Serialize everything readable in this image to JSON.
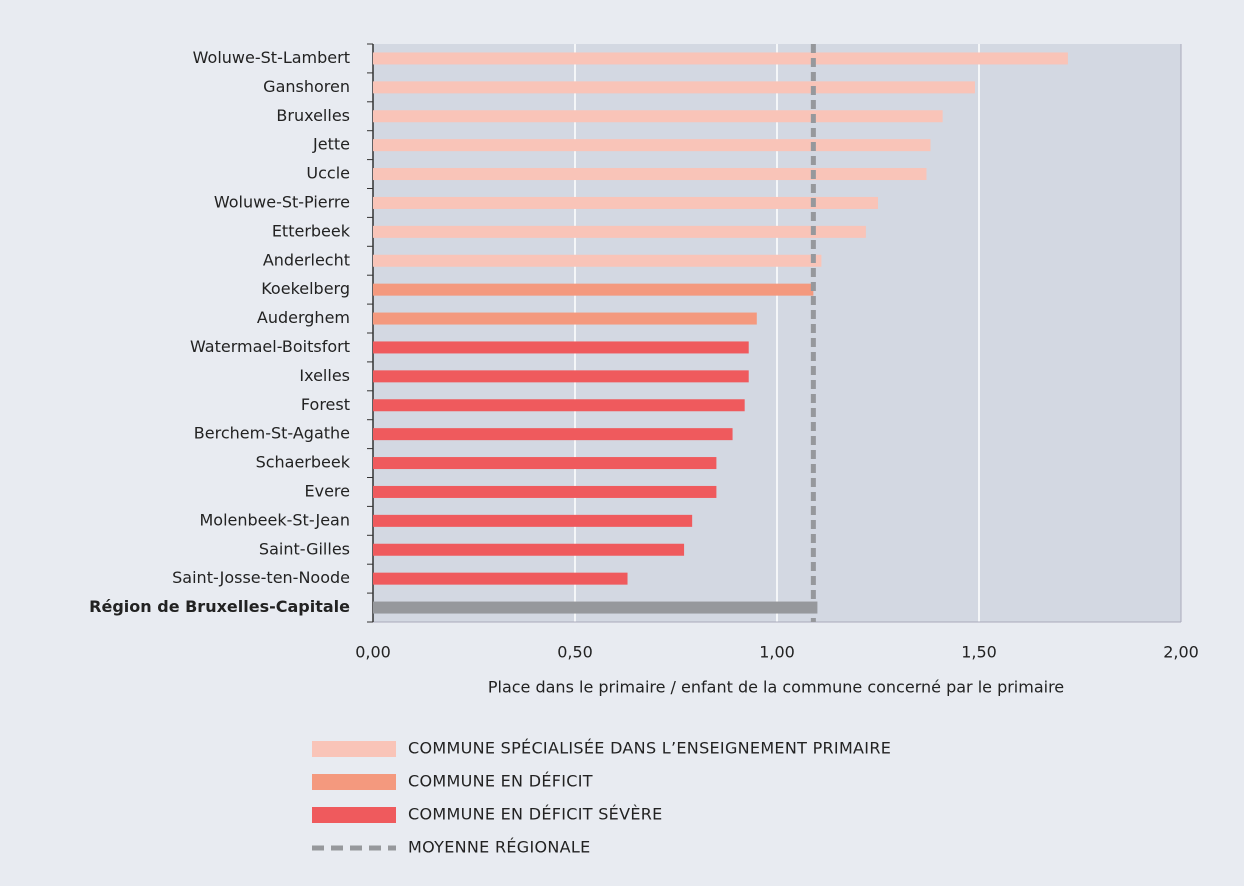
{
  "chart_data": {
    "type": "barh",
    "x_label": "Place dans le primaire / enfant de la commune concerné par le primaire",
    "categories": [
      "Woluwe-St-Lambert",
      "Ganshoren",
      "Bruxelles",
      "Jette",
      "Uccle",
      "Woluwe-St-Pierre",
      "Etterbeek",
      "Anderlecht",
      "Koekelberg",
      "Auderghem",
      "Watermael-Boitsfort",
      "Ixelles",
      "Forest",
      "Berchem-St-Agathe",
      "Schaerbeek",
      "Evere",
      "Molenbeek-St-Jean",
      "Saint-Gilles",
      "Saint-Josse-ten-Noode",
      "Région de Bruxelles-Capitale"
    ],
    "values": [
      1.72,
      1.49,
      1.41,
      1.38,
      1.37,
      1.25,
      1.22,
      1.11,
      1.09,
      0.95,
      0.93,
      0.93,
      0.92,
      0.89,
      0.85,
      0.85,
      0.79,
      0.77,
      0.63,
      1.1
    ],
    "colors": [
      "#f9c4b8",
      "#f9c4b8",
      "#f9c4b8",
      "#f9c4b8",
      "#f9c4b8",
      "#f9c4b8",
      "#f9c4b8",
      "#f9c4b8",
      "#f4997e",
      "#f4997e",
      "#ef5a5d",
      "#ef5a5d",
      "#ef5a5d",
      "#ef5a5d",
      "#ef5a5d",
      "#ef5a5d",
      "#ef5a5d",
      "#ef5a5d",
      "#ef5a5d",
      "#96989c"
    ],
    "xlim": [
      0,
      2
    ],
    "xticks": [
      {
        "value": 0,
        "label": "0,00"
      },
      {
        "value": 0.5,
        "label": "0,50"
      },
      {
        "value": 1,
        "label": "1,00"
      },
      {
        "value": 1.5,
        "label": "1,50"
      },
      {
        "value": 2,
        "label": "2,00"
      }
    ],
    "grid": true,
    "reference_line": {
      "label": "MOYENNE RÉGIONALE",
      "value": 1.09,
      "color": "#96989c"
    },
    "legend": [
      {
        "label": "COMMUNE SPÉCIALISÉE DANS L’ENSEIGNEMENT PRIMAIRE",
        "color": "#f9c4b8"
      },
      {
        "label": "COMMUNE EN DÉFICIT",
        "color": "#f4997e"
      },
      {
        "label": "COMMUNE EN DÉFICIT SÉVÈRE",
        "color": "#ef5a5d"
      }
    ]
  }
}
